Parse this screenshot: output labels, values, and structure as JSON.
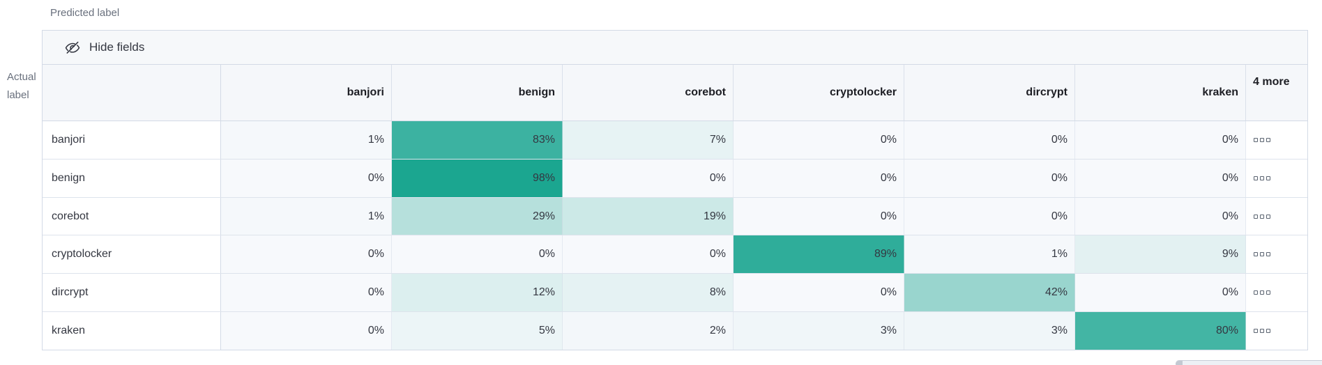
{
  "labels": {
    "predicted": "Predicted label",
    "actual": "Actual label"
  },
  "toolbar": {
    "hide_fields_label": "Hide fields"
  },
  "chart_data": {
    "type": "heatmap",
    "xlabel": "Predicted label",
    "ylabel": "Actual label",
    "columns": [
      "banjori",
      "benign",
      "corebot",
      "cryptolocker",
      "dircrypt",
      "kraken"
    ],
    "hidden_columns_header": "4 more",
    "rows": [
      "banjori",
      "benign",
      "corebot",
      "cryptolocker",
      "dircrypt",
      "kraken"
    ],
    "unit": "%",
    "values_percent": [
      [
        1,
        83,
        7,
        0,
        0,
        0
      ],
      [
        0,
        98,
        0,
        0,
        0,
        0
      ],
      [
        1,
        29,
        19,
        0,
        0,
        0
      ],
      [
        0,
        0,
        0,
        89,
        1,
        9
      ],
      [
        0,
        12,
        8,
        0,
        42,
        0
      ],
      [
        0,
        5,
        2,
        3,
        3,
        80
      ]
    ],
    "legend": "none",
    "color_scale": {
      "low": "#F7F9FC",
      "high": "#16A48E"
    }
  },
  "colors": {
    "header_bg": "#F5F7FA",
    "toolbar_bg": "#F6F8FA",
    "border": "#D3DAE6",
    "axis_text": "#69707D",
    "cell_text": "#343741"
  }
}
